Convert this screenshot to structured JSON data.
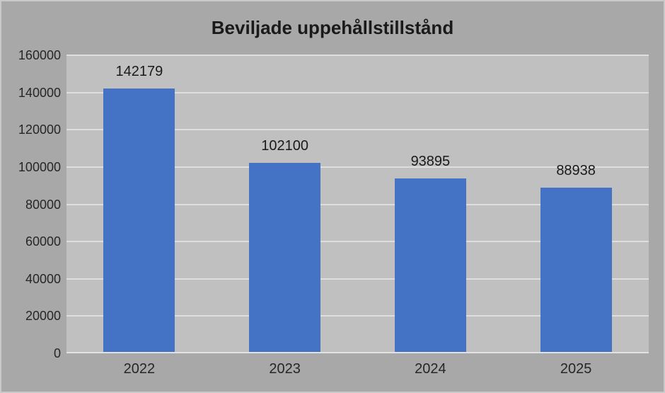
{
  "chart_data": {
    "type": "bar",
    "title": "Beviljade uppehållstillstånd",
    "categories": [
      "2022",
      "2023",
      "2024",
      "2025"
    ],
    "values": [
      142179,
      102100,
      93895,
      88938
    ],
    "data_labels": [
      "142179",
      "102100",
      "93895",
      "88938"
    ],
    "xlabel": "",
    "ylabel": "",
    "ylim": [
      0,
      160000
    ],
    "ytick_step": 20000,
    "ytick_labels": [
      "0",
      "20000",
      "40000",
      "60000",
      "80000",
      "100000",
      "120000",
      "140000",
      "160000"
    ],
    "grid": true,
    "legend": "none",
    "colors": {
      "bar": "#4472C4",
      "chart_background": "#A8A8A8",
      "plot_background": "#C0C0C0",
      "gridline": "#DEDEDE",
      "axis_line": "#E2E2E2",
      "title_text": "#1A1A1A",
      "label_text": "#262626"
    }
  }
}
